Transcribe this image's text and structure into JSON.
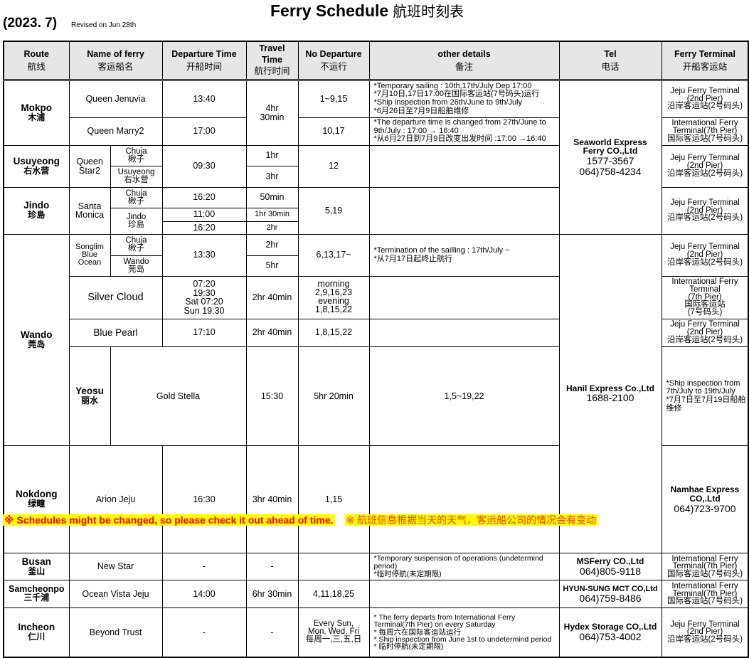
{
  "title": {
    "en": "Ferry Schedule",
    "zh": "航班时刻表"
  },
  "edition": "(2023. 7)",
  "revised": "Revised on Jun 28th",
  "columns": [
    {
      "en": "Route",
      "zh": "航线"
    },
    {
      "en": "Name of ferry",
      "zh": "客运船名"
    },
    {
      "en": "Departure Time",
      "zh": "开船时间"
    },
    {
      "en": "Travel\nTime",
      "zh": "航行时间"
    },
    {
      "en": "No Departure",
      "zh": "不运行"
    },
    {
      "en": "other details",
      "zh": "备注"
    },
    {
      "en": "Tel",
      "zh": "电话"
    },
    {
      "en": "Ferry Terminal",
      "zh": "开船客运站"
    }
  ],
  "terminals": {
    "jeju": "Jeju Ferry Terminal\n(2nd Pier)\n沿岸客运站(2号码头)",
    "intl": "International Ferry\nTerminal(7th Pier)\n国际客运站(7号码头)",
    "intl_long": "International Ferry\nTerminal\n(7th Pier)\n国际客运站\n(7号码头)"
  },
  "companies": {
    "seaworld": {
      "name": "Seaworld Express\nFerry CO.,Ltd",
      "phone": "1577-3567\n064)758-4234"
    },
    "hanil": {
      "name": "Hanil Express Co.,Ltd",
      "phone": "1688-2100"
    },
    "namhae": {
      "name": "Namhae Express CO,.Ltd",
      "phone": "064)723-9700"
    },
    "msferry": {
      "name": "MSFerry CO.,Ltd",
      "phone": "064)805-9118"
    },
    "hyunsung": {
      "name": "HYUN-SUNG MCT CO,Ltd",
      "phone": "064)759-8486"
    },
    "hydex": {
      "name": "Hydex Storage CO,.Ltd",
      "phone": "064)753-4002"
    }
  },
  "routes": {
    "mokpo": {
      "name": "Mokpo",
      "zh": "木浦",
      "travel": "4hr\n30min",
      "ships": [
        {
          "name": "Queen Jenuvia",
          "dep": "13:40",
          "no_dep": "1~9,15",
          "details": "*Temporary sailing : 10th,17th/July Dep 17:00\n*7月10日,17日17:00在国际客运站(7号码头)运行\n*Ship inspection from 26th/June to 9th/July\n*6月26日至7月9日船舶维修"
        },
        {
          "name": "Queen Marry2",
          "dep": "17:00",
          "no_dep": "10,17",
          "details": "*The departure time is changed from 27th/June to 9th/July : 17:00 → 16:40\n*从6月27日到7月9日改变出发时间 :17:00 →16:40"
        }
      ]
    },
    "usuyeong": {
      "name": "Usuyeong",
      "zh": "右水营",
      "ship": "Queen\nStar2",
      "dep": "09:30",
      "no_dep": "12",
      "legs": [
        {
          "stop": "Chuja\n楸子",
          "travel": "1hr"
        },
        {
          "stop": "Usuyeong\n右水营",
          "travel": "3hr"
        }
      ]
    },
    "jindo": {
      "name": "Jindo",
      "zh": "珍島",
      "ship": "Santa\nMonica",
      "no_dep": "5,19",
      "legs": [
        {
          "stop": "Chuja\n楸子",
          "dep": "16:20",
          "travel": "50min"
        },
        {
          "stop": "Jindo\n珍島",
          "dep": "11:00",
          "travel": "1hr 30min"
        },
        {
          "dep": "16:20",
          "travel": "2hr"
        }
      ]
    },
    "wando": {
      "name": "Wando",
      "zh": "莞岛",
      "songlim": {
        "ship": "Songlim\nBlue\nOcean",
        "dep": "13:30",
        "no_dep": "6,13,17~",
        "details": "*Termination of the sailling : 17th/July ~\n*从7月17日起终止航行",
        "legs": [
          {
            "stop": "Chuja\n楸子",
            "travel": "2hr"
          },
          {
            "stop": "Wando\n莞岛",
            "travel": "5hr"
          }
        ]
      },
      "silver": {
        "name": "Silver Cloud",
        "dep": "07:20\n19:30\nSat 07:20\nSun 19:30",
        "travel": "2hr 40min",
        "no_dep": "morning\n2,9,16,23\nevening\n1,8,15,22"
      },
      "pearl": {
        "name": "Blue Pearl",
        "dep": "17:10",
        "travel": "2hr 40min",
        "no_dep": "1,8,15,22"
      }
    },
    "yeosu": {
      "name": "Yeosu",
      "zh": "丽水",
      "ship": "Gold Stella",
      "dep": "15:30",
      "travel": "5hr 20min",
      "no_dep": "1,5~19,22",
      "details": "*Ship inspection from 7th/July to 19th/July\n*7月7日至7月19日船舶维修"
    },
    "nokdong": {
      "name": "Nokdong",
      "zh": "绿疃",
      "ship": "Arion Jeju",
      "dep": "16:30",
      "travel": "3hr 40min",
      "no_dep": "1,15"
    },
    "busan": {
      "name": "Busan",
      "zh": "釜山",
      "ship": "New Star",
      "dep": "-",
      "travel": "-",
      "details": "*Temporary suspension of operations (undetermind period)\n*临时停航(未定期限)"
    },
    "samcheonpo": {
      "name": "Samcheonpo",
      "zh": "三千浦",
      "ship": "Ocean Vista Jeju",
      "dep": "14:00",
      "travel": "6hr 30min",
      "no_dep": "4,11,18,25"
    },
    "incheon": {
      "name": "Incheon",
      "zh": "仁川",
      "ship": "Beyond Trust",
      "dep": "-",
      "travel": "-",
      "no_dep": "Every Sun,\nMon, Wed, Fri\n每周一,三,五,日",
      "details": "* The ferry departs from International Ferry\n  Terminal(7th Pier) on every Saturday\n* 每周六在国际客运站运行\n* Ship inspection from June 1st to undetermind period\n* 临时停航(未定期限)"
    }
  },
  "footer": {
    "en": "※ Schedules might be changed, so please check it out ahead of time.",
    "zh": "※ 航班信息根据当天的天气，客运船公司的情况会有变动"
  },
  "colors": {
    "header_bg": "#e6e6e6",
    "footer_highlight": "#ffff00",
    "footer_text": "#ff0000"
  }
}
